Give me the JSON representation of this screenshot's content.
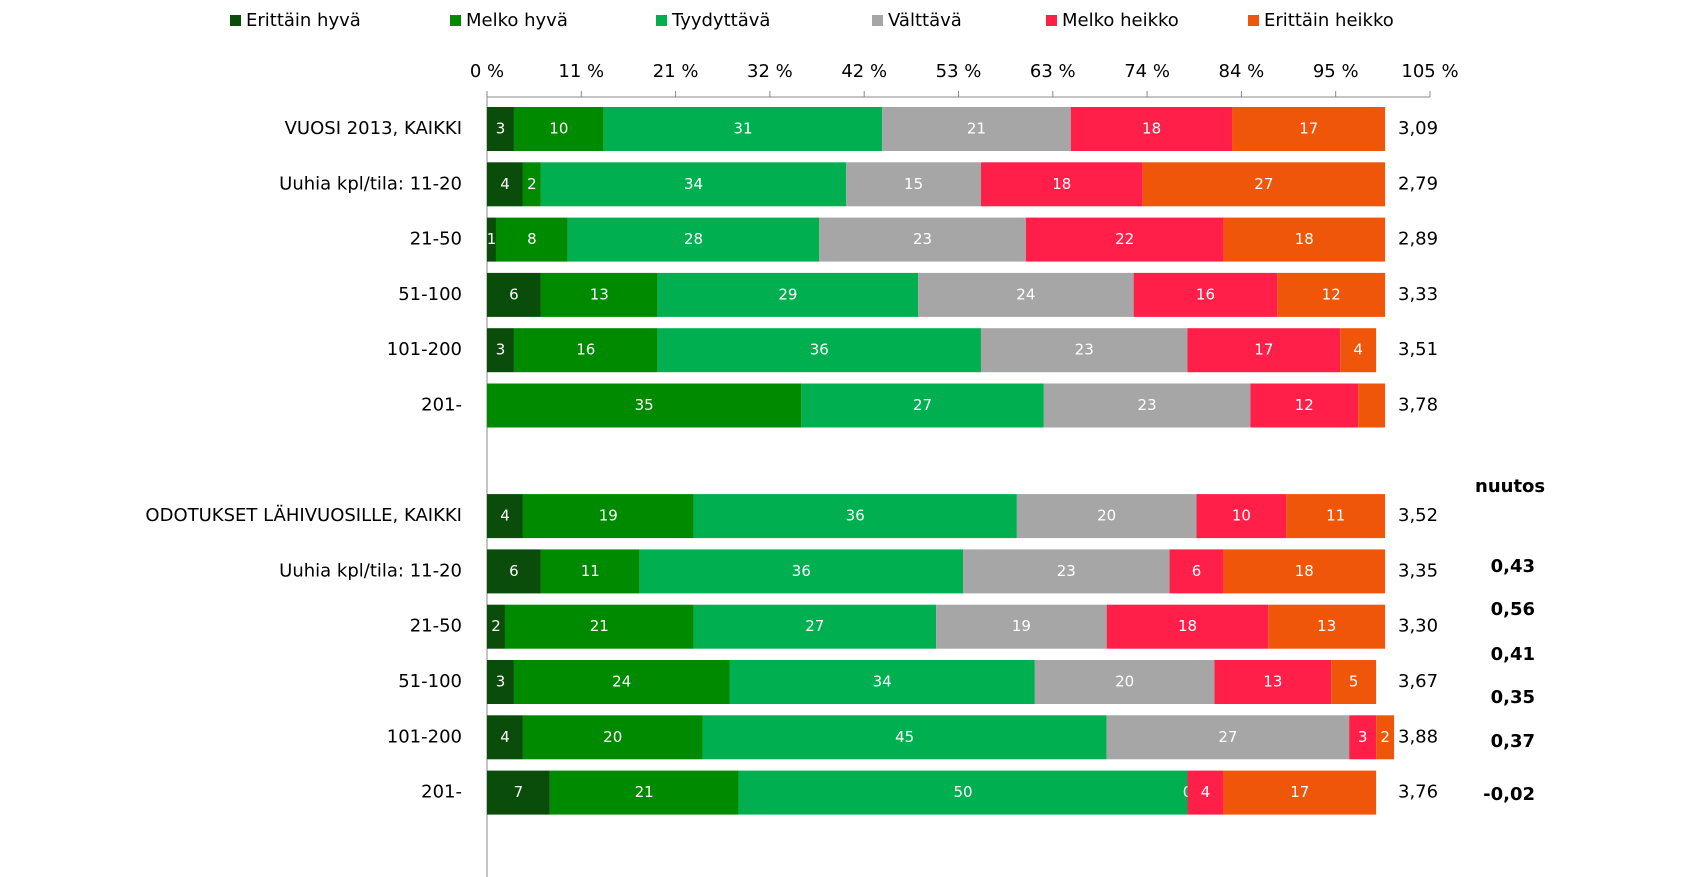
{
  "chart_data": {
    "type": "stacked-bar-horizontal",
    "categories": [
      "VUOSI 2013, KAIKKI",
      "Uuhia kpl/tila: 11-20",
      "21-50",
      "51-100",
      "101-200",
      "201-",
      null,
      "ODOTUKSET LÄHIVUOSILLE, KAIKKI",
      "Uuhia kpl/tila: 11-20",
      "21-50",
      "51-100",
      "101-200",
      "201-"
    ],
    "series": [
      {
        "name": "Erittäin hyvä",
        "color": "#0a4d0a",
        "values": [
          3,
          4,
          1,
          6,
          3,
          0,
          null,
          4,
          6,
          2,
          3,
          4,
          7
        ],
        "value_labels": [
          "3",
          "4",
          "1",
          "6",
          "3",
          null,
          null,
          "4",
          "6",
          "2",
          "3",
          "4",
          "7"
        ]
      },
      {
        "name": "Melko hyvä",
        "color": "#008a00",
        "values": [
          10,
          2,
          8,
          13,
          16,
          35,
          null,
          19,
          11,
          21,
          24,
          20,
          21
        ],
        "value_labels": [
          "10",
          "2",
          "8",
          "13",
          "16",
          "35",
          null,
          "19",
          "11",
          "21",
          "24",
          "20",
          "21"
        ]
      },
      {
        "name": "Tyydyttävä",
        "color": "#00b050",
        "values": [
          31,
          34,
          28,
          29,
          36,
          27,
          null,
          36,
          36,
          27,
          34,
          45,
          50
        ],
        "value_labels": [
          "31",
          "34",
          "28",
          "29",
          "36",
          "27",
          null,
          "36",
          "36",
          "27",
          "34",
          "45",
          "50"
        ]
      },
      {
        "name": "Välttävä",
        "color": "#a6a6a6",
        "values": [
          21,
          15,
          23,
          24,
          23,
          23,
          null,
          20,
          23,
          19,
          20,
          27,
          0
        ],
        "value_labels": [
          "21",
          "15",
          "23",
          "24",
          "23",
          "23",
          null,
          "20",
          "23",
          "19",
          "20",
          "27",
          "0"
        ]
      },
      {
        "name": "Melko heikko",
        "color": "#ff1f48",
        "values": [
          18,
          18,
          22,
          16,
          17,
          12,
          null,
          10,
          6,
          18,
          13,
          3,
          4
        ],
        "value_labels": [
          "18",
          "18",
          "22",
          "16",
          "17",
          "12",
          null,
          "10",
          "6",
          "18",
          "13",
          "3",
          "4"
        ]
      },
      {
        "name": "Erittäin heikko",
        "color": "#f0560a",
        "values": [
          17,
          27,
          18,
          12,
          4,
          3,
          null,
          11,
          18,
          13,
          5,
          2,
          17
        ],
        "value_labels": [
          "17",
          "27",
          "18",
          "12",
          "4",
          null,
          null,
          "11",
          "18",
          "13",
          "5",
          "2",
          "17"
        ]
      }
    ],
    "means": [
      3.09,
      2.79,
      2.89,
      3.33,
      3.51,
      3.78,
      null,
      3.52,
      3.35,
      3.3,
      3.67,
      3.88,
      3.76
    ],
    "mean_labels": [
      "3,09",
      "2,79",
      "2,89",
      "3,33",
      "3,51",
      "3,78",
      null,
      "3,52",
      "3,35",
      "3,30",
      "3,67",
      "3,88",
      "3,76"
    ],
    "xlim": [
      0,
      105
    ],
    "xticks": [
      {
        "value": 0,
        "label": "0 %"
      },
      {
        "value": 10.5,
        "label": "11 %"
      },
      {
        "value": 21,
        "label": "21 %"
      },
      {
        "value": 31.5,
        "label": "32 %"
      },
      {
        "value": 42,
        "label": "42 %"
      },
      {
        "value": 52.5,
        "label": "53 %"
      },
      {
        "value": 63,
        "label": "63 %"
      },
      {
        "value": 73.5,
        "label": "74 %"
      },
      {
        "value": 84,
        "label": "84 %"
      },
      {
        "value": 94.5,
        "label": "95 %"
      },
      {
        "value": 105,
        "label": "105 %"
      }
    ],
    "legend": "top",
    "change_column": {
      "title": "nuutos",
      "values": [
        "0,43",
        "0,56",
        "0,41",
        "0,35",
        "0,37",
        "-0,02"
      ]
    }
  }
}
